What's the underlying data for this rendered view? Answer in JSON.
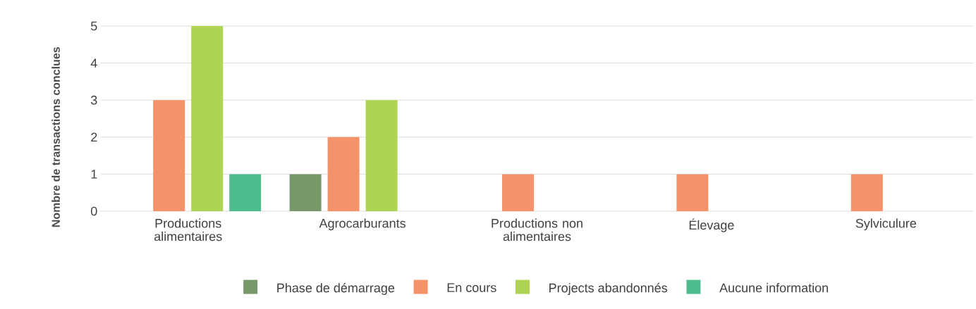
{
  "chart_data": {
    "type": "bar",
    "ylabel": "Nombre de transactions conclues",
    "categories": [
      "Productions alimentaires",
      "Agrocarburants",
      "Productions non alimentaires",
      "Élevage",
      "Sylviculure"
    ],
    "series": [
      {
        "name": "Phase de démarrage",
        "color": "#77996a",
        "values": [
          null,
          1,
          null,
          null,
          null
        ]
      },
      {
        "name": "En cours",
        "color": "#f4936a",
        "values": [
          3,
          2,
          1,
          1,
          1
        ]
      },
      {
        "name": "Projects abandonnés",
        "color": "#afd352",
        "values": [
          5,
          3,
          null,
          null,
          null
        ]
      },
      {
        "name": "Aucune information",
        "color": "#4dbd8e",
        "values": [
          1,
          null,
          null,
          null,
          null
        ]
      }
    ],
    "ylim": [
      0,
      5
    ],
    "yticks": [
      0,
      1,
      2,
      3,
      4,
      5
    ],
    "grid": "y",
    "legend": "bottom"
  }
}
